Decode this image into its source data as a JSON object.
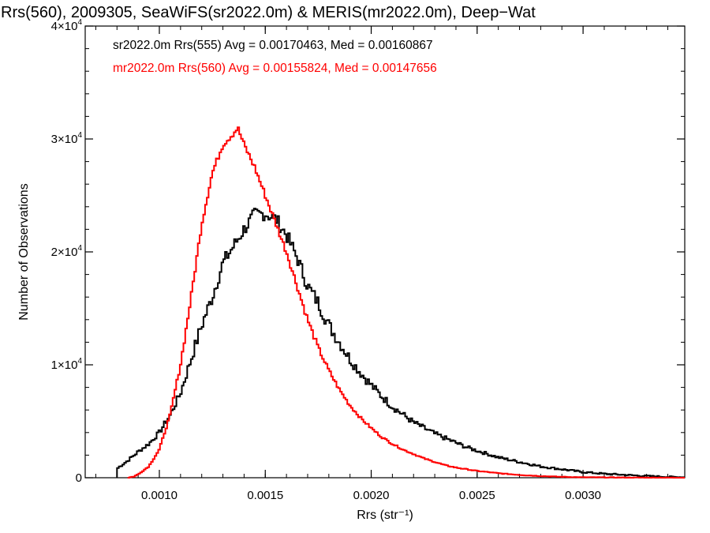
{
  "chart_data": {
    "type": "step-histogram",
    "title": "Rrs(560), 2009305, SeaWiFS(sr2022.0m) & MERIS(mr2022.0m), Deep−Wat",
    "xlabel": "Rrs (str⁻¹)",
    "ylabel": "Number of Observations",
    "xlim": [
      0.00065,
      0.00348
    ],
    "ylim": [
      0,
      40000
    ],
    "x_ticks": [
      {
        "value": 0.001,
        "label": "0.0010"
      },
      {
        "value": 0.0015,
        "label": "0.0015"
      },
      {
        "value": 0.002,
        "label": "0.0020"
      },
      {
        "value": 0.0025,
        "label": "0.0025"
      },
      {
        "value": 0.003,
        "label": "0.0030"
      }
    ],
    "y_ticks": [
      {
        "value": 0,
        "label": "0"
      },
      {
        "value": 10000,
        "label": "1×10",
        "exp": "4"
      },
      {
        "value": 20000,
        "label": "2×10",
        "exp": "4"
      },
      {
        "value": 30000,
        "label": "3×10",
        "exp": "4"
      },
      {
        "value": 40000,
        "label": "4×10",
        "exp": "4"
      }
    ],
    "series": [
      {
        "name": "sr2022.0m Rrs(555) Avg = 0.00170463, Med = 0.00160867",
        "color": "#000000",
        "points": [
          [
            0.0008,
            0
          ],
          [
            0.0008,
            800
          ],
          [
            0.00085,
            1500
          ],
          [
            0.0009,
            2300
          ],
          [
            0.00095,
            3000
          ],
          [
            0.001,
            4000
          ],
          [
            0.00105,
            5500
          ],
          [
            0.0011,
            7500
          ],
          [
            0.00115,
            10500
          ],
          [
            0.0012,
            13500
          ],
          [
            0.00125,
            16000
          ],
          [
            0.0013,
            19000
          ],
          [
            0.00135,
            20500
          ],
          [
            0.0014,
            22000
          ],
          [
            0.00145,
            23300
          ],
          [
            0.0015,
            23400
          ],
          [
            0.00155,
            22900
          ],
          [
            0.0016,
            21500
          ],
          [
            0.00165,
            19500
          ],
          [
            0.0017,
            17000
          ],
          [
            0.00175,
            15500
          ],
          [
            0.0018,
            13500
          ],
          [
            0.00185,
            12000
          ],
          [
            0.0019,
            10500
          ],
          [
            0.00195,
            9300
          ],
          [
            0.002,
            8200
          ],
          [
            0.00205,
            7200
          ],
          [
            0.0021,
            6300
          ],
          [
            0.00215,
            5600
          ],
          [
            0.0022,
            4900
          ],
          [
            0.00225,
            4400
          ],
          [
            0.0023,
            3900
          ],
          [
            0.00235,
            3500
          ],
          [
            0.0024,
            3100
          ],
          [
            0.00245,
            2700
          ],
          [
            0.0025,
            2400
          ],
          [
            0.00255,
            2100
          ],
          [
            0.0026,
            1800
          ],
          [
            0.0027,
            1400
          ],
          [
            0.0028,
            1000
          ],
          [
            0.0029,
            750
          ],
          [
            0.003,
            500
          ],
          [
            0.0031,
            350
          ],
          [
            0.0032,
            250
          ],
          [
            0.0033,
            150
          ],
          [
            0.0034,
            80
          ],
          [
            0.00348,
            40
          ]
        ]
      },
      {
        "name": "mr2022.0m Rrs(560) Avg = 0.00155824, Med = 0.00147656",
        "color": "#ff0000",
        "points": [
          [
            0.00085,
            0
          ],
          [
            0.00088,
            100
          ],
          [
            0.0009,
            300
          ],
          [
            0.00095,
            1000
          ],
          [
            0.001,
            2500
          ],
          [
            0.00105,
            5500
          ],
          [
            0.0011,
            10000
          ],
          [
            0.00115,
            16000
          ],
          [
            0.0012,
            22500
          ],
          [
            0.00125,
            27000
          ],
          [
            0.0013,
            29500
          ],
          [
            0.00135,
            30500
          ],
          [
            0.00137,
            31000
          ],
          [
            0.0014,
            29500
          ],
          [
            0.00145,
            27500
          ],
          [
            0.0015,
            25000
          ],
          [
            0.00155,
            22500
          ],
          [
            0.0016,
            20000
          ],
          [
            0.00165,
            17000
          ],
          [
            0.0017,
            14000
          ],
          [
            0.00175,
            11500
          ],
          [
            0.0018,
            9500
          ],
          [
            0.00185,
            7800
          ],
          [
            0.0019,
            6400
          ],
          [
            0.00195,
            5300
          ],
          [
            0.002,
            4400
          ],
          [
            0.00205,
            3600
          ],
          [
            0.0021,
            3000
          ],
          [
            0.00215,
            2500
          ],
          [
            0.0022,
            2100
          ],
          [
            0.00225,
            1700
          ],
          [
            0.0023,
            1400
          ],
          [
            0.00235,
            1100
          ],
          [
            0.0024,
            900
          ],
          [
            0.0025,
            600
          ],
          [
            0.0026,
            400
          ],
          [
            0.0027,
            250
          ],
          [
            0.0028,
            150
          ],
          [
            0.0029,
            80
          ],
          [
            0.003,
            40
          ],
          [
            0.0032,
            15
          ],
          [
            0.00348,
            0
          ]
        ]
      }
    ]
  }
}
